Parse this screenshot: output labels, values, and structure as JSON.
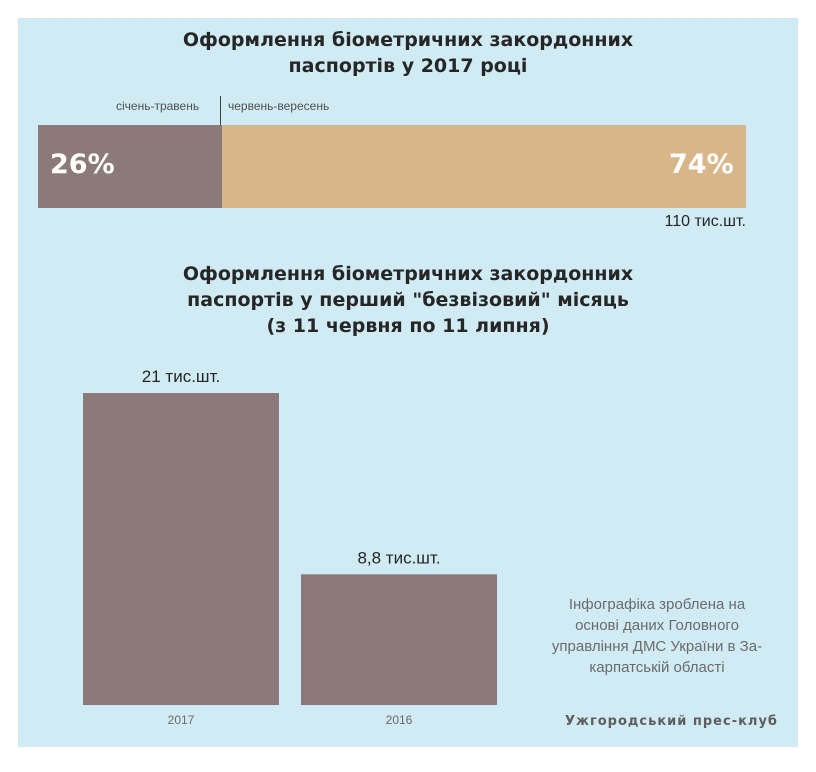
{
  "title1": [
    "Оформлення біометричних закордонних",
    "паспортів у 2017 році"
  ],
  "title2": [
    "Оформлення біометричних закордонних",
    "паспортів у перший \"безвізовий\" місяць",
    "(з 11 червня по 11 липня)"
  ],
  "chart_data": [
    {
      "type": "bar",
      "orientation": "horizontal-stacked",
      "categories": [
        "січень-травень",
        "червень-вересень"
      ],
      "values": [
        26,
        74
      ],
      "value_labels": [
        "26%",
        "74%"
      ],
      "unit": "%",
      "total_label": "110 тис.шт.",
      "colors": [
        "#8b7a79",
        "#d9b68a"
      ]
    },
    {
      "type": "bar",
      "categories": [
        "2017",
        "2016"
      ],
      "values": [
        21,
        8.8
      ],
      "value_labels": [
        "21 тис.шт.",
        "8,8 тис.шт."
      ],
      "ylim": [
        0,
        21
      ],
      "color": "#8b7a79"
    }
  ],
  "source_note": [
    "Інфографіка зроблена на",
    "основі даних Головного",
    "управління ДМС України в За-",
    "карпатській області"
  ],
  "credit": "Ужгородський прес-клуб",
  "colors": {
    "background": "#d0ebf3",
    "bar_dark": "#8b7a79",
    "bar_light": "#d9b68a"
  }
}
